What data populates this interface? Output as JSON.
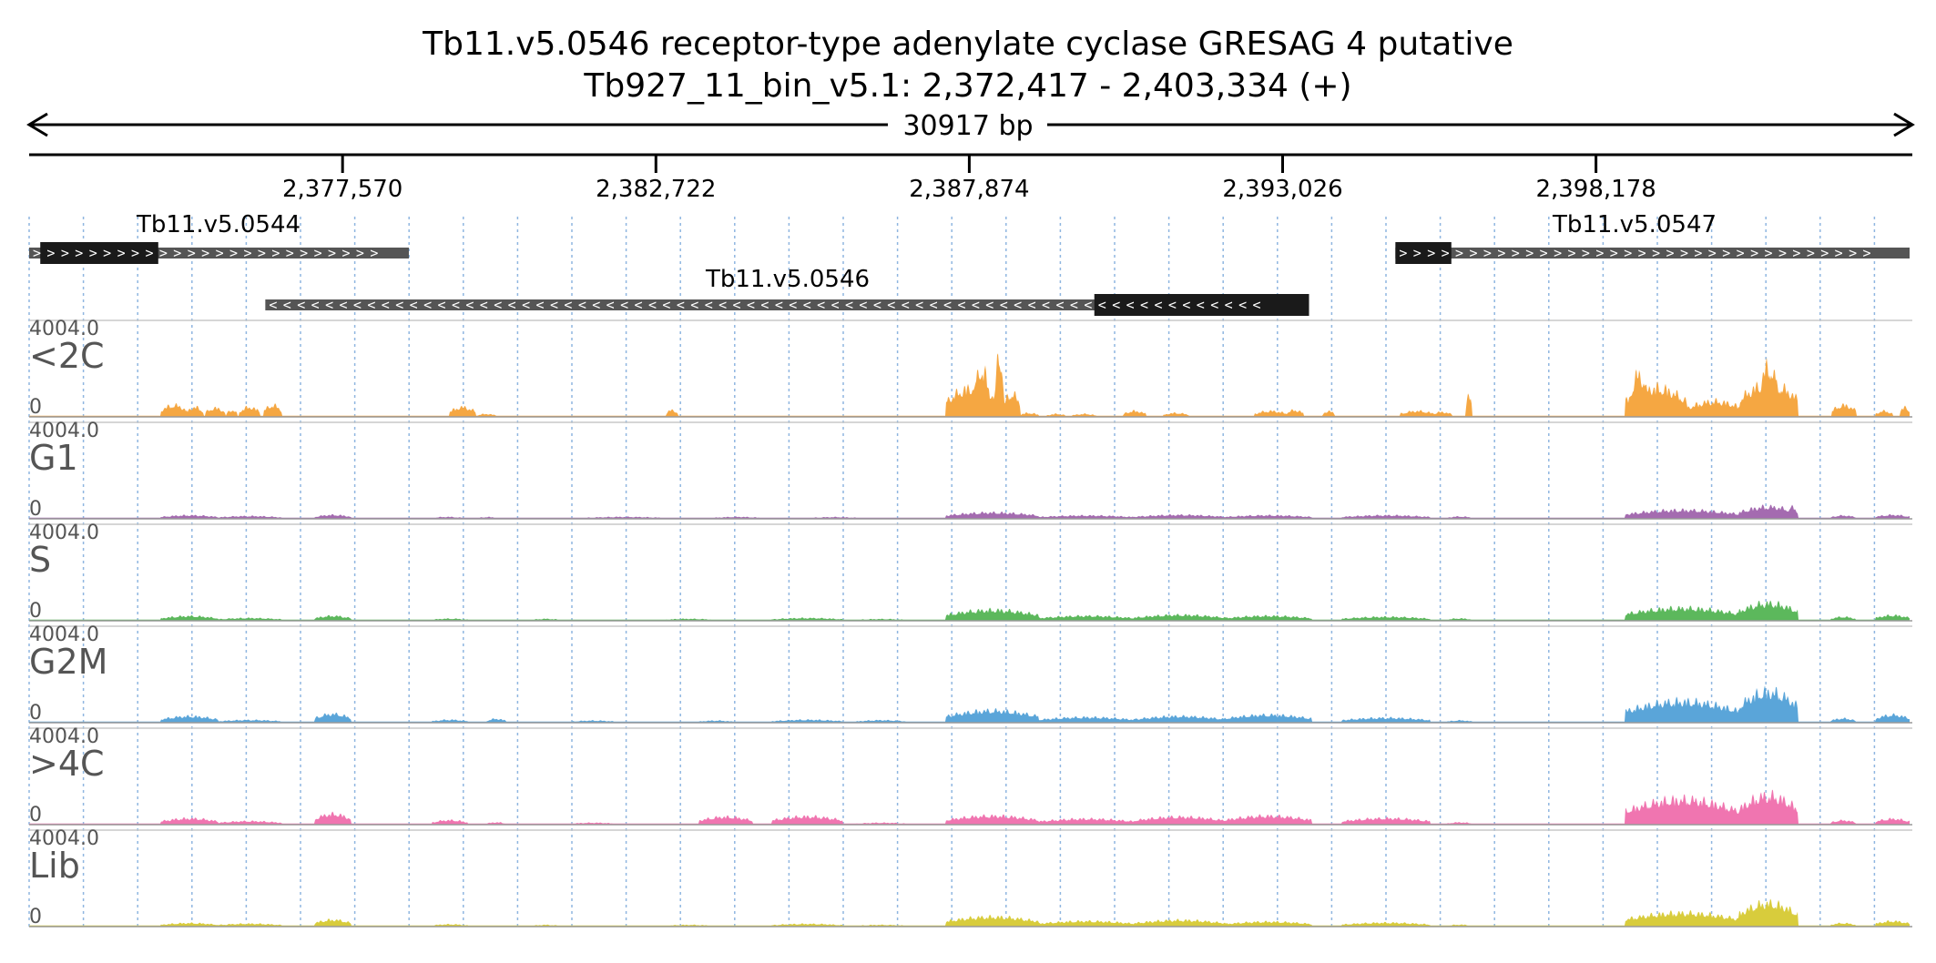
{
  "header": {
    "title": "Tb11.v5.0546  receptor-type adenylate cyclase GRESAG 4  putative",
    "subtitle": "Tb927_11_bin_v5.1: 2,372,417 - 2,403,334 (+)",
    "span_label": "30917 bp"
  },
  "chart_data": {
    "type": "area",
    "title": "Tb11.v5.0546  receptor-type adenylate cyclase GRESAG 4  putative",
    "region": {
      "chrom": "Tb927_11_bin_v5.1",
      "start": 2372417,
      "end": 2403334,
      "strand": "+"
    },
    "ticks": [
      {
        "value": 2377570,
        "label": "2,377,570"
      },
      {
        "value": 2382722,
        "label": "2,382,722"
      },
      {
        "value": 2387874,
        "label": "2,387,874"
      },
      {
        "value": 2393026,
        "label": "2,393,026"
      },
      {
        "value": 2398178,
        "label": "2,398,178"
      }
    ],
    "genes": [
      {
        "name": "Tb11.v5.0544",
        "start": 2372417,
        "end": 2378660,
        "cds_start": 2372600,
        "cds_end": 2374540,
        "strand": "+"
      },
      {
        "name": "Tb11.v5.0546",
        "start": 2376300,
        "end": 2393460,
        "cds_start": 2389930,
        "cds_end": 2393460,
        "strand": "-"
      },
      {
        "name": "Tb11.v5.0547",
        "start": 2394880,
        "end": 2403334,
        "cds_start": 2394880,
        "cds_end": 2395800,
        "strand": "+"
      }
    ],
    "y_range": [
      0,
      4004.0
    ],
    "y_max_label": "4004.0",
    "y_min_label": "0",
    "grid": true,
    "tracks": [
      {
        "name": "<2C",
        "color": "#f5a742",
        "peaks": [
          [
            2374590,
            2375000,
            600
          ],
          [
            2375000,
            2375280,
            500
          ],
          [
            2375320,
            2375630,
            450
          ],
          [
            2375660,
            2375830,
            350
          ],
          [
            2375880,
            2376200,
            500
          ],
          [
            2376280,
            2376570,
            600
          ],
          [
            2379340,
            2379750,
            500
          ],
          [
            2379780,
            2380080,
            150
          ],
          [
            2382890,
            2383080,
            350
          ],
          [
            2387500,
            2388400,
            1500
          ],
          [
            2388300,
            2388430,
            3200
          ],
          [
            2388430,
            2388700,
            1200
          ],
          [
            2387960,
            2388200,
            2500
          ],
          [
            2388700,
            2389000,
            200
          ],
          [
            2389160,
            2389450,
            150
          ],
          [
            2389580,
            2389950,
            150
          ],
          [
            2390420,
            2390780,
            300
          ],
          [
            2391070,
            2391470,
            200
          ],
          [
            2392570,
            2393100,
            300
          ],
          [
            2393100,
            2393360,
            350
          ],
          [
            2393690,
            2393870,
            300
          ],
          [
            2394960,
            2395520,
            300
          ],
          [
            2395490,
            2395800,
            250
          ],
          [
            2396050,
            2396130,
            1100
          ],
          [
            2398660,
            2399660,
            1500
          ],
          [
            2398760,
            2399010,
            2200
          ],
          [
            2399660,
            2400600,
            800
          ],
          [
            2400550,
            2401490,
            1700
          ],
          [
            2400860,
            2401160,
            2600
          ],
          [
            2402060,
            2402450,
            600
          ],
          [
            2402780,
            2403050,
            300
          ],
          [
            2403180,
            2403334,
            500
          ]
        ]
      },
      {
        "name": "G1",
        "color": "#a46bb0",
        "peaks": [
          [
            2374590,
            2375520,
            180
          ],
          [
            2375520,
            2376560,
            140
          ],
          [
            2377120,
            2377700,
            200
          ],
          [
            2379050,
            2379530,
            100
          ],
          [
            2379800,
            2380130,
            90
          ],
          [
            2381550,
            2382850,
            100
          ],
          [
            2383680,
            2384460,
            100
          ],
          [
            2385260,
            2386050,
            90
          ],
          [
            2387500,
            2389000,
            320
          ],
          [
            2389000,
            2390600,
            170
          ],
          [
            2390600,
            2392070,
            200
          ],
          [
            2392070,
            2393500,
            180
          ],
          [
            2394000,
            2395440,
            180
          ],
          [
            2395750,
            2396130,
            120
          ],
          [
            2398660,
            2400540,
            450
          ],
          [
            2400540,
            2401490,
            620
          ],
          [
            2401350,
            2401490,
            600
          ],
          [
            2402040,
            2402440,
            170
          ],
          [
            2402780,
            2403334,
            200
          ]
        ]
      },
      {
        "name": "S",
        "color": "#5cb85c",
        "peaks": [
          [
            2374590,
            2375520,
            240
          ],
          [
            2375520,
            2376560,
            140
          ],
          [
            2377120,
            2377700,
            250
          ],
          [
            2379050,
            2379620,
            110
          ],
          [
            2380690,
            2381130,
            100
          ],
          [
            2382870,
            2383660,
            100
          ],
          [
            2384640,
            2385780,
            140
          ],
          [
            2386020,
            2386840,
            90
          ],
          [
            2387500,
            2389000,
            550
          ],
          [
            2389000,
            2390600,
            250
          ],
          [
            2390600,
            2392070,
            300
          ],
          [
            2392070,
            2393500,
            250
          ],
          [
            2394000,
            2395440,
            200
          ],
          [
            2395750,
            2396130,
            120
          ],
          [
            2398660,
            2400540,
            650
          ],
          [
            2400540,
            2401490,
            900
          ],
          [
            2402040,
            2402440,
            200
          ],
          [
            2402780,
            2403334,
            280
          ]
        ]
      },
      {
        "name": "G2M",
        "color": "#5aa5d9",
        "peaks": [
          [
            2374590,
            2375520,
            330
          ],
          [
            2375520,
            2376560,
            140
          ],
          [
            2377120,
            2377700,
            450
          ],
          [
            2379050,
            2379620,
            150
          ],
          [
            2379950,
            2380240,
            200
          ],
          [
            2381320,
            2382060,
            110
          ],
          [
            2383440,
            2383980,
            110
          ],
          [
            2384640,
            2385780,
            150
          ],
          [
            2386020,
            2386840,
            130
          ],
          [
            2387500,
            2389000,
            620
          ],
          [
            2389000,
            2390600,
            280
          ],
          [
            2390600,
            2392070,
            330
          ],
          [
            2392070,
            2393500,
            400
          ],
          [
            2394000,
            2395440,
            250
          ],
          [
            2395750,
            2396130,
            120
          ],
          [
            2398660,
            2400540,
            1100
          ],
          [
            2400540,
            2401490,
            1600
          ],
          [
            2402040,
            2402440,
            220
          ],
          [
            2402780,
            2403334,
            400
          ]
        ]
      },
      {
        "name": ">4C",
        "color": "#f075b0",
        "peaks": [
          [
            2374590,
            2375520,
            320
          ],
          [
            2375520,
            2376560,
            180
          ],
          [
            2377120,
            2377700,
            550
          ],
          [
            2379050,
            2379620,
            230
          ],
          [
            2379950,
            2380240,
            120
          ],
          [
            2381320,
            2382060,
            100
          ],
          [
            2383440,
            2384300,
            400
          ],
          [
            2384640,
            2385780,
            420
          ],
          [
            2386020,
            2386840,
            100
          ],
          [
            2387500,
            2389000,
            450
          ],
          [
            2389000,
            2390600,
            300
          ],
          [
            2390600,
            2392070,
            400
          ],
          [
            2392070,
            2393500,
            450
          ],
          [
            2394000,
            2395440,
            330
          ],
          [
            2395750,
            2396130,
            120
          ],
          [
            2398660,
            2400540,
            1300
          ],
          [
            2400540,
            2401490,
            1500
          ],
          [
            2402040,
            2402440,
            220
          ],
          [
            2402780,
            2403334,
            300
          ]
        ]
      },
      {
        "name": "Lib",
        "color": "#d8cc3c",
        "peaks": [
          [
            2374590,
            2375520,
            180
          ],
          [
            2375520,
            2376560,
            150
          ],
          [
            2377120,
            2377700,
            350
          ],
          [
            2379050,
            2379620,
            120
          ],
          [
            2380690,
            2381130,
            90
          ],
          [
            2382870,
            2383660,
            90
          ],
          [
            2384640,
            2385780,
            140
          ],
          [
            2386020,
            2386840,
            90
          ],
          [
            2387500,
            2389000,
            500
          ],
          [
            2389000,
            2390600,
            280
          ],
          [
            2390600,
            2392070,
            330
          ],
          [
            2392070,
            2393500,
            250
          ],
          [
            2394000,
            2395440,
            200
          ],
          [
            2395750,
            2396130,
            100
          ],
          [
            2398660,
            2400540,
            700
          ],
          [
            2400540,
            2401490,
            1200
          ],
          [
            2402040,
            2402440,
            180
          ],
          [
            2402780,
            2403334,
            280
          ]
        ]
      }
    ]
  }
}
